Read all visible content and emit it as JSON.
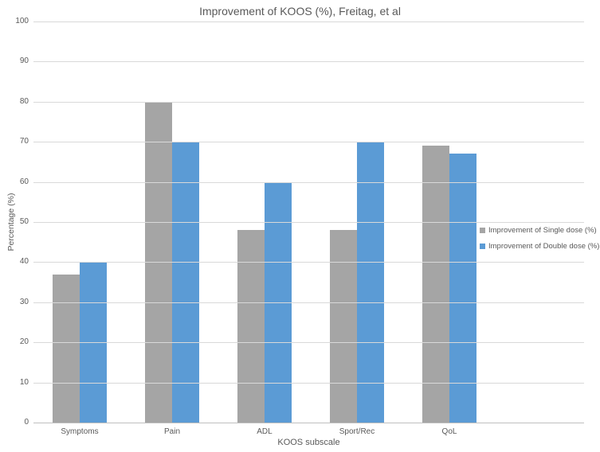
{
  "title": "Improvement of KOOS (%), Freitag, et al",
  "chart_data": {
    "type": "bar",
    "title": "Improvement of KOOS (%), Freitag, et al",
    "categories": [
      "Symptoms",
      "Pain",
      "ADL",
      "Sport/Rec",
      "QoL"
    ],
    "series": [
      {
        "name": "Improvement of Single dose (%)",
        "color": "#a5a5a5",
        "values": [
          37,
          80,
          48,
          48,
          69
        ]
      },
      {
        "name": "Improvement of Double dose (%)",
        "color": "#5b9bd5",
        "values": [
          40,
          70,
          60,
          70,
          67
        ]
      }
    ],
    "xlabel": "KOOS subscale",
    "ylabel": "Percentage (%)",
    "ylim": [
      0,
      100
    ],
    "yticks": [
      0,
      10,
      20,
      30,
      40,
      50,
      60,
      70,
      80,
      90,
      100
    ],
    "grid": true,
    "legend_position": "right-overlay"
  },
  "colors": {
    "gridline": "#d9d9d9",
    "axis_line": "#bfbfbf",
    "text": "#595959",
    "background": "#ffffff"
  }
}
